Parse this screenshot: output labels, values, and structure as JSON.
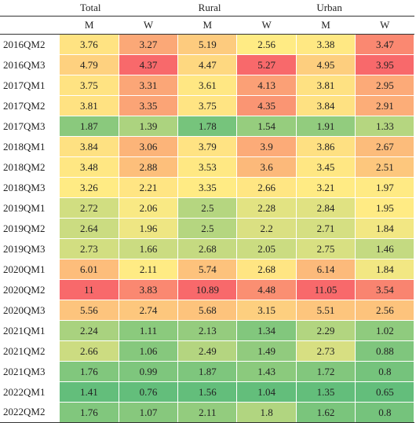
{
  "chart_data": {
    "type": "heatmap",
    "groups": [
      "Total",
      "Rural",
      "Urban"
    ],
    "subheaders": [
      "M",
      "W",
      "M",
      "W",
      "M",
      "W"
    ],
    "rows": [
      {
        "label": "2016QM2",
        "values": [
          "3.76",
          "3.27",
          "5.19",
          "2.56",
          "3.38",
          "3.47"
        ]
      },
      {
        "label": "2016QM3",
        "values": [
          "4.79",
          "4.37",
          "4.47",
          "5.27",
          "4.95",
          "3.95"
        ]
      },
      {
        "label": "2017QM1",
        "values": [
          "3.75",
          "3.31",
          "3.61",
          "4.13",
          "3.81",
          "2.95"
        ]
      },
      {
        "label": "2017QM2",
        "values": [
          "3.81",
          "3.35",
          "3.75",
          "4.35",
          "3.84",
          "2.91"
        ]
      },
      {
        "label": "2017QM3",
        "values": [
          "1.87",
          "1.39",
          "1.78",
          "1.54",
          "1.91",
          "1.33"
        ]
      },
      {
        "label": "2018QM1",
        "values": [
          "3.84",
          "3.06",
          "3.79",
          "3.9",
          "3.86",
          "2.67"
        ]
      },
      {
        "label": "2018QM2",
        "values": [
          "3.48",
          "2.88",
          "3.53",
          "3.6",
          "3.45",
          "2.51"
        ]
      },
      {
        "label": "2018QM3",
        "values": [
          "3.26",
          "2.21",
          "3.35",
          "2.66",
          "3.21",
          "1.97"
        ]
      },
      {
        "label": "2019QM1",
        "values": [
          "2.72",
          "2.06",
          "2.5",
          "2.28",
          "2.84",
          "1.95"
        ]
      },
      {
        "label": "2019QM2",
        "values": [
          "2.64",
          "1.96",
          "2.5",
          "2.2",
          "2.71",
          "1.84"
        ]
      },
      {
        "label": "2019QM3",
        "values": [
          "2.73",
          "1.66",
          "2.68",
          "2.05",
          "2.75",
          "1.46"
        ]
      },
      {
        "label": "2020QM1",
        "values": [
          "6.01",
          "2.11",
          "5.74",
          "2.68",
          "6.14",
          "1.84"
        ]
      },
      {
        "label": "2020QM2",
        "values": [
          "11",
          "3.83",
          "10.89",
          "4.48",
          "11.05",
          "3.54"
        ]
      },
      {
        "label": "2020QM3",
        "values": [
          "5.56",
          "2.74",
          "5.68",
          "3.15",
          "5.51",
          "2.56"
        ]
      },
      {
        "label": "2021QM1",
        "values": [
          "2.24",
          "1.11",
          "2.13",
          "1.34",
          "2.29",
          "1.02"
        ]
      },
      {
        "label": "2021QM2",
        "values": [
          "2.66",
          "1.06",
          "2.49",
          "1.49",
          "2.73",
          "0.88"
        ]
      },
      {
        "label": "2021QM3",
        "values": [
          "1.76",
          "0.99",
          "1.87",
          "1.43",
          "1.72",
          "0.8"
        ]
      },
      {
        "label": "2022QM1",
        "values": [
          "1.41",
          "0.76",
          "1.56",
          "1.04",
          "1.35",
          "0.65"
        ]
      },
      {
        "label": "2022QM2",
        "values": [
          "1.76",
          "1.07",
          "2.11",
          "1.8",
          "1.62",
          "0.8"
        ]
      }
    ],
    "color_scale": {
      "scope": "per-column",
      "low": "#63be7b",
      "mid": "#ffeb84",
      "high": "#f8696b"
    }
  }
}
